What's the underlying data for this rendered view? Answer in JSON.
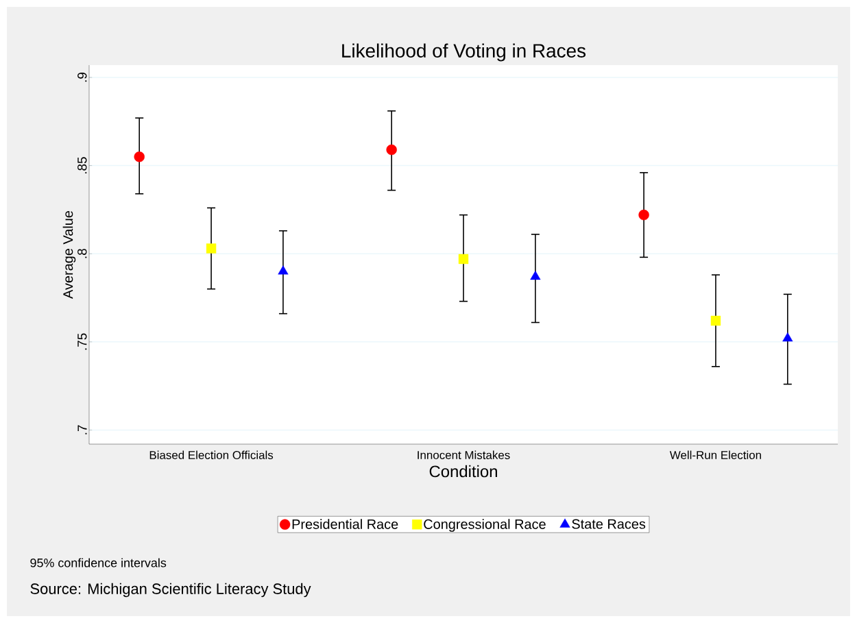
{
  "chart_data": {
    "type": "scatter",
    "title": "Likelihood of Voting in Races",
    "xlabel": "Condition",
    "ylabel": "Average Value",
    "categories": [
      "Biased Election Officials",
      "Innocent Mistakes",
      "Well-Run Election"
    ],
    "series": [
      {
        "name": "Presidential Race",
        "color": "#ff0000",
        "marker": "circle",
        "values": [
          0.855,
          0.859,
          0.822
        ],
        "errors": [
          [
            0.834,
            0.877
          ],
          [
            0.836,
            0.881
          ],
          [
            0.798,
            0.846
          ]
        ]
      },
      {
        "name": "Congressional Race",
        "color": "#ffff00",
        "marker": "square",
        "values": [
          0.803,
          0.797,
          0.762
        ],
        "errors": [
          [
            0.78,
            0.826
          ],
          [
            0.773,
            0.822
          ],
          [
            0.736,
            0.788
          ]
        ]
      },
      {
        "name": "State Races",
        "color": "#0000ff",
        "marker": "triangle",
        "values": [
          0.79,
          0.787,
          0.752
        ],
        "errors": [
          [
            0.766,
            0.813
          ],
          [
            0.761,
            0.811
          ],
          [
            0.726,
            0.777
          ]
        ]
      }
    ],
    "ylim": [
      0.692,
      0.907
    ],
    "yticks": [
      {
        "value": 0.7,
        "label": ".7"
      },
      {
        "value": 0.75,
        "label": ".75"
      },
      {
        "value": 0.8,
        "label": ".8"
      },
      {
        "value": 0.85,
        "label": ".85"
      },
      {
        "value": 0.9,
        "label": ".9"
      }
    ],
    "grid": "y",
    "legend": "bottom",
    "annotations": [
      "95% confidence intervals",
      "Source: Michigan Scientific Literacy Study"
    ]
  }
}
